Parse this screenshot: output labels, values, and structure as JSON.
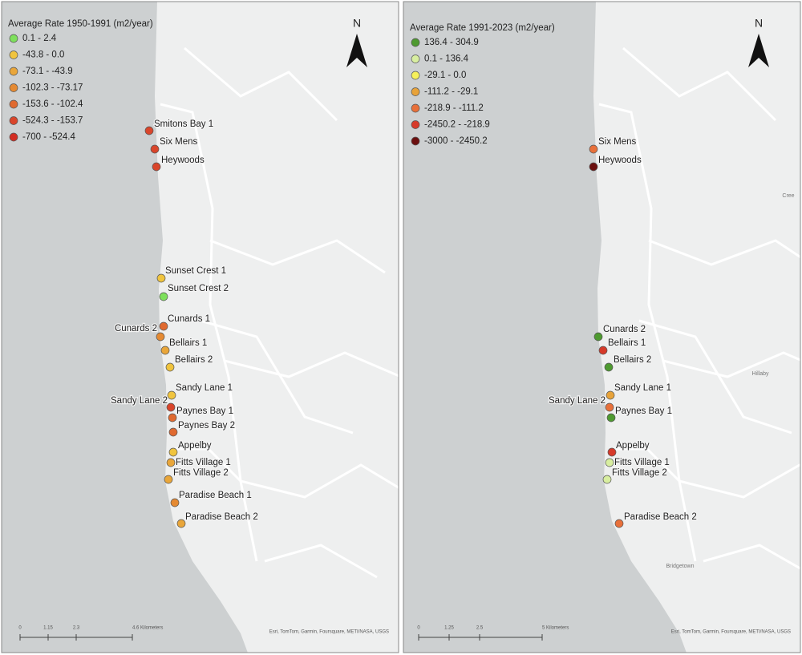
{
  "panels": [
    {
      "legend": {
        "title": "Average Rate 1950-1991 (m2/year)",
        "items": [
          {
            "label": "0.1 - 2.4",
            "color": "#7ee05c"
          },
          {
            "label": "-43.8 - 0.0",
            "color": "#f0c43e"
          },
          {
            "label": "-73.1 - -43.9",
            "color": "#e9a63a"
          },
          {
            "label": "-102.3 - -73.17",
            "color": "#e58a32"
          },
          {
            "label": "-153.6 - -102.4",
            "color": "#e06a30"
          },
          {
            "label": "-524.3 - -153.7",
            "color": "#d9452b"
          },
          {
            "label": "-700 - -524.4",
            "color": "#d22d22"
          }
        ]
      },
      "north": "N",
      "sites": [
        {
          "label": "Smitons Bay 1",
          "color": "#d9452b"
        },
        {
          "label": "Six Mens",
          "color": "#d9452b"
        },
        {
          "label": "Heywoods",
          "color": "#d9452b"
        },
        {
          "label": "Sunset Crest 1",
          "color": "#f0c43e"
        },
        {
          "label": "Sunset Crest 2",
          "color": "#7ee05c"
        },
        {
          "label": "Cunards 1",
          "color": "#e06a30"
        },
        {
          "label": "Cunards 2",
          "color": "#e58a32"
        },
        {
          "label": "Bellairs 1",
          "color": "#e9a63a"
        },
        {
          "label": "Bellairs 2",
          "color": "#f0c43e"
        },
        {
          "label": "Sandy Lane 1",
          "color": "#f0c43e"
        },
        {
          "label": "Sandy Lane 2",
          "color": "#d9452b"
        },
        {
          "label": "Paynes Bay 1",
          "color": "#e06a30"
        },
        {
          "label": "Paynes Bay 2",
          "color": "#e06a30"
        },
        {
          "label": "Appelby",
          "color": "#f0c43e"
        },
        {
          "label": "Fitts Village 1",
          "color": "#e9a63a"
        },
        {
          "label": "Fitts Village 2",
          "color": "#e9a63a"
        },
        {
          "label": "Paradise Beach 1",
          "color": "#e58a32"
        },
        {
          "label": "Paradise Beach 2",
          "color": "#e9a63a"
        }
      ],
      "place_labels": [],
      "scalebar": [
        "0",
        "1.15",
        "2.3",
        "4.6 Kilometers"
      ],
      "attribution": "Esri, TomTom, Garmin, Foursquare, METI/NASA, USGS"
    },
    {
      "legend": {
        "title": "Average Rate 1991-2023 (m2/year)",
        "items": [
          {
            "label": "136.4 - 304.9",
            "color": "#4e9a30"
          },
          {
            "label": "0.1 - 136.4",
            "color": "#d8eea0"
          },
          {
            "label": "-29.1 - 0.0",
            "color": "#f6f05a"
          },
          {
            "label": "-111.2 - -29.1",
            "color": "#e8a33a"
          },
          {
            "label": "-218.9 - -111.2",
            "color": "#e8703a"
          },
          {
            "label": "-2450.2 - -218.9",
            "color": "#d63a2a"
          },
          {
            "label": "-3000 - -2450.2",
            "color": "#6b0f0f"
          }
        ]
      },
      "north": "N",
      "sites": [
        {
          "label": "Six Mens",
          "color": "#e8703a"
        },
        {
          "label": "Heywoods",
          "color": "#6b0f0f"
        },
        {
          "label": "Cunards 2",
          "color": "#4e9a30"
        },
        {
          "label": "Bellairs 1",
          "color": "#d63a2a"
        },
        {
          "label": "Bellairs 2",
          "color": "#4e9a30"
        },
        {
          "label": "Sandy Lane 1",
          "color": "#e8a33a"
        },
        {
          "label": "Sandy Lane 2",
          "color": "#e8703a"
        },
        {
          "label": "Paynes Bay 1",
          "color": "#4e9a30"
        },
        {
          "label": "Appelby",
          "color": "#d63a2a"
        },
        {
          "label": "Fitts Village 1",
          "color": "#d8eea0"
        },
        {
          "label": "Fitts Village 2",
          "color": "#d8eea0"
        },
        {
          "label": "Paradise Beach 2",
          "color": "#e8703a"
        }
      ],
      "place_labels": [
        "Cree",
        "Hillaby",
        "Bridgetown"
      ],
      "scalebar": [
        "0",
        "1.25",
        "2.5",
        "5 Kilometers"
      ],
      "attribution": "Esri, TomTom, Garmin, Foursquare, METI/NASA, USGS"
    }
  ]
}
